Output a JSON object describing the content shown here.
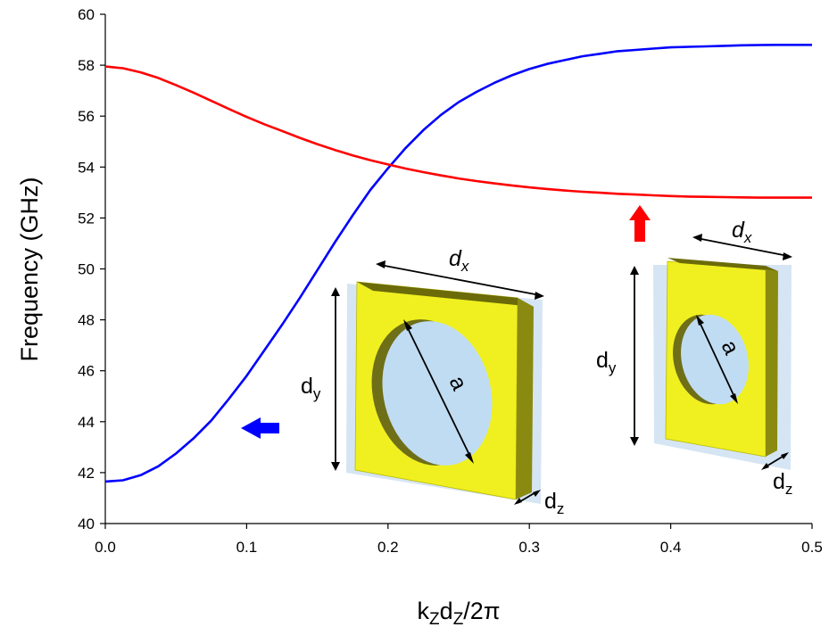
{
  "chart_data": {
    "type": "line",
    "xlabel": "k_Z d_Z / 2π",
    "xlabel_parts": {
      "k": "k",
      "sub1": "Z",
      "d": "d",
      "sub2": "Z",
      "rest": "/2π"
    },
    "ylabel": "Frequency (GHz)",
    "xlim": [
      0,
      0.5
    ],
    "ylim": [
      40,
      60
    ],
    "x_ticks": [
      "0.0",
      "0.1",
      "0.2",
      "0.3",
      "0.4",
      "0.5"
    ],
    "y_ticks": [
      "40",
      "42",
      "44",
      "46",
      "48",
      "50",
      "52",
      "54",
      "56",
      "58",
      "60"
    ],
    "grid": false,
    "series": [
      {
        "color": "#0000ff",
        "x": [
          0,
          0.0125,
          0.025,
          0.0375,
          0.05,
          0.0625,
          0.075,
          0.0875,
          0.1,
          0.1125,
          0.125,
          0.1375,
          0.15,
          0.1625,
          0.175,
          0.1875,
          0.2,
          0.2125,
          0.225,
          0.2375,
          0.25,
          0.2625,
          0.275,
          0.2875,
          0.3,
          0.3125,
          0.325,
          0.3375,
          0.35,
          0.3625,
          0.375,
          0.3875,
          0.4,
          0.4125,
          0.425,
          0.4375,
          0.45,
          0.4625,
          0.475,
          0.4875,
          0.5
        ],
        "y": [
          41.65,
          41.7,
          41.9,
          42.25,
          42.75,
          43.35,
          44.05,
          44.9,
          45.8,
          46.8,
          47.8,
          48.85,
          49.95,
          51.05,
          52.1,
          53.1,
          53.95,
          54.75,
          55.45,
          56.05,
          56.55,
          56.95,
          57.3,
          57.6,
          57.85,
          58.05,
          58.2,
          58.35,
          58.45,
          58.55,
          58.6,
          58.65,
          58.7,
          58.72,
          58.74,
          58.76,
          58.78,
          58.79,
          58.8,
          58.8,
          58.8
        ]
      },
      {
        "color": "#ff0000",
        "x": [
          0,
          0.0125,
          0.025,
          0.0375,
          0.05,
          0.0625,
          0.075,
          0.0875,
          0.1,
          0.1125,
          0.125,
          0.1375,
          0.15,
          0.1625,
          0.175,
          0.1875,
          0.2,
          0.2125,
          0.225,
          0.2375,
          0.25,
          0.2625,
          0.275,
          0.2875,
          0.3,
          0.3125,
          0.325,
          0.3375,
          0.35,
          0.3625,
          0.375,
          0.3875,
          0.4,
          0.4125,
          0.425,
          0.4375,
          0.45,
          0.4625,
          0.475,
          0.4875,
          0.5
        ],
        "y": [
          57.95,
          57.88,
          57.72,
          57.5,
          57.22,
          56.92,
          56.6,
          56.28,
          55.97,
          55.68,
          55.42,
          55.15,
          54.9,
          54.67,
          54.46,
          54.27,
          54.1,
          53.94,
          53.8,
          53.67,
          53.55,
          53.45,
          53.36,
          53.28,
          53.2,
          53.14,
          53.08,
          53.03,
          52.99,
          52.95,
          52.92,
          52.89,
          52.86,
          52.84,
          52.83,
          52.82,
          52.81,
          52.8,
          52.8,
          52.8,
          52.8
        ]
      }
    ],
    "annotations": {
      "left_cell": {
        "dx": "d",
        "dx_sub": "x",
        "dy": "d",
        "dy_sub": "y",
        "dz": "d",
        "dz_sub": "z",
        "a": "a"
      },
      "right_cell": {
        "dx": "d",
        "dx_sub": "x",
        "dy": "d",
        "dy_sub": "y",
        "dz": "d",
        "dz_sub": "z",
        "a": "a"
      },
      "arrows": [
        {
          "series_color": "#0000ff",
          "direction": "left"
        },
        {
          "series_color": "#ff0000",
          "direction": "up"
        }
      ],
      "colors": {
        "metal": "#f0f020",
        "metal_side": "#8a8a10",
        "metal_top": "#6b6b0a",
        "glass": "#c8dcf0",
        "hole": "#c0dcf2"
      }
    }
  }
}
